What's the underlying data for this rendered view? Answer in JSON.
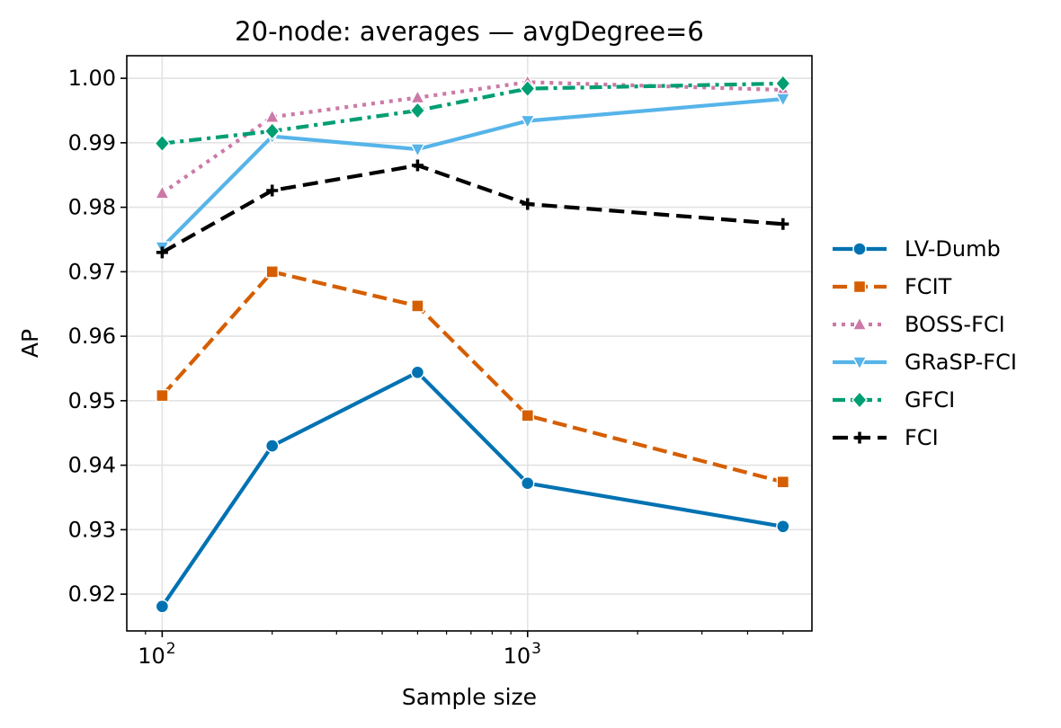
{
  "chart_data": {
    "type": "line",
    "title": "20-node: averages — avgDegree=6",
    "xlabel": "Sample size",
    "ylabel": "AP",
    "xscale": "log",
    "xlim": [
      80,
      6000
    ],
    "ylim": [
      0.9143,
      1.0035
    ],
    "x": [
      100,
      200,
      500,
      1000,
      5000
    ],
    "xticks": [
      {
        "value": 100,
        "base": "10",
        "exp": "2"
      },
      {
        "value": 1000,
        "base": "10",
        "exp": "3"
      }
    ],
    "yticks": [
      0.92,
      0.93,
      0.94,
      0.95,
      0.96,
      0.97,
      0.98,
      0.99,
      1.0
    ],
    "ytick_labels": [
      "0.92",
      "0.93",
      "0.94",
      "0.95",
      "0.96",
      "0.97",
      "0.98",
      "0.99",
      "1.00"
    ],
    "grid": true,
    "legend_position": "right-outside",
    "series": [
      {
        "name": "LV-Dumb",
        "color": "#0072b2",
        "marker": "circle",
        "dash": "solid",
        "values": [
          0.9181,
          0.943,
          0.9544,
          0.9372,
          0.9305
        ]
      },
      {
        "name": "FCIT",
        "color": "#d55e00",
        "marker": "square",
        "dash": "dashed",
        "values": [
          0.9508,
          0.97,
          0.9647,
          0.9477,
          0.9374
        ]
      },
      {
        "name": "BOSS-FCI",
        "color": "#cc79a7",
        "marker": "triangle-up",
        "dash": "dotted",
        "values": [
          0.9822,
          0.994,
          0.997,
          0.9994,
          0.9982
        ]
      },
      {
        "name": "GRaSP-FCI",
        "color": "#56b4e9",
        "marker": "triangle-down",
        "dash": "solid",
        "values": [
          0.9738,
          0.991,
          0.989,
          0.9934,
          0.9968
        ]
      },
      {
        "name": "GFCI",
        "color": "#009e73",
        "marker": "diamond",
        "dash": "dashdot",
        "values": [
          0.9899,
          0.9918,
          0.995,
          0.9984,
          0.9992
        ]
      },
      {
        "name": "FCI",
        "color": "#000000",
        "marker": "plus",
        "dash": "longdash",
        "values": [
          0.973,
          0.9826,
          0.9865,
          0.9805,
          0.9774
        ]
      }
    ]
  }
}
